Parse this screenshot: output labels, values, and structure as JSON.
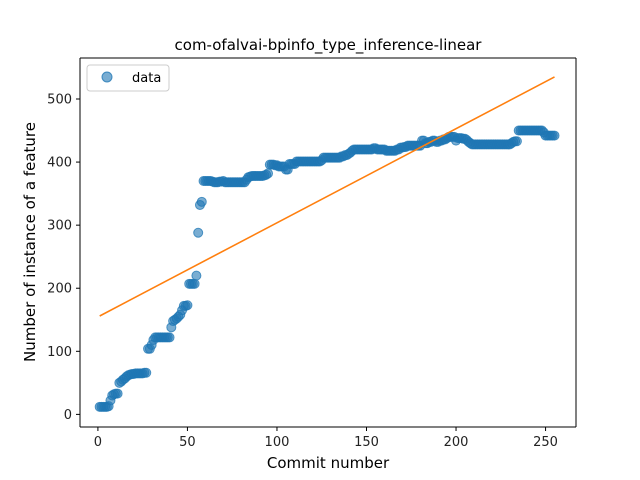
{
  "chart_data": {
    "type": "scatter",
    "title": "com-ofalvai-bpinfo_type_inference-linear",
    "xlabel": "Commit number",
    "ylabel": "Number of instance of a feature",
    "xlim": [
      -10,
      267
    ],
    "ylim": [
      -20,
      565
    ],
    "xticks": [
      0,
      50,
      100,
      150,
      200,
      250
    ],
    "yticks": [
      0,
      100,
      200,
      300,
      400,
      500
    ],
    "legend": {
      "position": "top-left",
      "entries": [
        "data"
      ]
    },
    "grid": false,
    "colors": {
      "data": "#1f77b4",
      "fit": "#ff7f0e"
    },
    "series": [
      {
        "name": "data",
        "kind": "scatter",
        "points": [
          [
            1,
            12
          ],
          [
            2,
            12
          ],
          [
            3,
            12
          ],
          [
            4,
            12
          ],
          [
            5,
            12
          ],
          [
            6,
            13
          ],
          [
            7,
            22
          ],
          [
            8,
            30
          ],
          [
            9,
            32
          ],
          [
            10,
            33
          ],
          [
            11,
            33
          ],
          [
            12,
            50
          ],
          [
            13,
            52
          ],
          [
            14,
            55
          ],
          [
            15,
            57
          ],
          [
            16,
            60
          ],
          [
            17,
            62
          ],
          [
            18,
            63
          ],
          [
            19,
            64
          ],
          [
            20,
            64
          ],
          [
            21,
            65
          ],
          [
            22,
            65
          ],
          [
            23,
            65
          ],
          [
            24,
            65
          ],
          [
            25,
            65
          ],
          [
            26,
            66
          ],
          [
            27,
            66
          ],
          [
            28,
            104
          ],
          [
            29,
            104
          ],
          [
            30,
            110
          ],
          [
            31,
            118
          ],
          [
            32,
            122
          ],
          [
            33,
            122
          ],
          [
            34,
            122
          ],
          [
            35,
            122
          ],
          [
            36,
            122
          ],
          [
            37,
            122
          ],
          [
            38,
            122
          ],
          [
            39,
            122
          ],
          [
            40,
            122
          ],
          [
            41,
            138
          ],
          [
            42,
            148
          ],
          [
            43,
            150
          ],
          [
            44,
            152
          ],
          [
            45,
            155
          ],
          [
            46,
            158
          ],
          [
            47,
            165
          ],
          [
            48,
            172
          ],
          [
            49,
            172
          ],
          [
            50,
            173
          ],
          [
            51,
            207
          ],
          [
            52,
            207
          ],
          [
            53,
            207
          ],
          [
            54,
            207
          ],
          [
            55,
            220
          ],
          [
            56,
            288
          ],
          [
            57,
            332
          ],
          [
            58,
            337
          ],
          [
            59,
            370
          ],
          [
            60,
            370
          ],
          [
            61,
            370
          ],
          [
            62,
            370
          ],
          [
            63,
            370
          ],
          [
            64,
            369
          ],
          [
            65,
            368
          ],
          [
            66,
            368
          ],
          [
            67,
            368
          ],
          [
            68,
            369
          ],
          [
            69,
            369
          ],
          [
            70,
            370
          ],
          [
            71,
            368
          ],
          [
            72,
            368
          ],
          [
            73,
            368
          ],
          [
            74,
            368
          ],
          [
            75,
            368
          ],
          [
            76,
            368
          ],
          [
            77,
            368
          ],
          [
            78,
            368
          ],
          [
            79,
            368
          ],
          [
            80,
            368
          ],
          [
            81,
            368
          ],
          [
            82,
            368
          ],
          [
            83,
            372
          ],
          [
            84,
            376
          ],
          [
            85,
            377
          ],
          [
            86,
            378
          ],
          [
            87,
            378
          ],
          [
            88,
            378
          ],
          [
            89,
            378
          ],
          [
            90,
            378
          ],
          [
            91,
            378
          ],
          [
            92,
            378
          ],
          [
            93,
            379
          ],
          [
            94,
            380
          ],
          [
            95,
            382
          ],
          [
            96,
            396
          ],
          [
            97,
            396
          ],
          [
            98,
            396
          ],
          [
            99,
            395
          ],
          [
            100,
            395
          ],
          [
            101,
            393
          ],
          [
            102,
            393
          ],
          [
            103,
            393
          ],
          [
            104,
            393
          ],
          [
            105,
            388
          ],
          [
            106,
            388
          ],
          [
            107,
            397
          ],
          [
            108,
            397
          ],
          [
            109,
            397
          ],
          [
            110,
            397
          ],
          [
            111,
            401
          ],
          [
            112,
            401
          ],
          [
            113,
            401
          ],
          [
            114,
            401
          ],
          [
            115,
            401
          ],
          [
            116,
            401
          ],
          [
            117,
            401
          ],
          [
            118,
            401
          ],
          [
            119,
            401
          ],
          [
            120,
            401
          ],
          [
            121,
            401
          ],
          [
            122,
            401
          ],
          [
            123,
            401
          ],
          [
            124,
            401
          ],
          [
            125,
            403
          ],
          [
            126,
            407
          ],
          [
            127,
            407
          ],
          [
            128,
            407
          ],
          [
            129,
            407
          ],
          [
            130,
            407
          ],
          [
            131,
            407
          ],
          [
            132,
            407
          ],
          [
            133,
            407
          ],
          [
            134,
            407
          ],
          [
            135,
            407
          ],
          [
            136,
            409
          ],
          [
            137,
            409
          ],
          [
            138,
            411
          ],
          [
            139,
            411
          ],
          [
            140,
            413
          ],
          [
            141,
            415
          ],
          [
            142,
            418
          ],
          [
            143,
            420
          ],
          [
            144,
            420
          ],
          [
            145,
            420
          ],
          [
            146,
            420
          ],
          [
            147,
            420
          ],
          [
            148,
            420
          ],
          [
            149,
            420
          ],
          [
            150,
            420
          ],
          [
            151,
            420
          ],
          [
            152,
            420
          ],
          [
            153,
            420
          ],
          [
            154,
            422
          ],
          [
            155,
            422
          ],
          [
            156,
            420
          ],
          [
            157,
            420
          ],
          [
            158,
            420
          ],
          [
            159,
            420
          ],
          [
            160,
            420
          ],
          [
            161,
            418
          ],
          [
            162,
            418
          ],
          [
            163,
            418
          ],
          [
            164,
            418
          ],
          [
            165,
            418
          ],
          [
            166,
            418
          ],
          [
            167,
            420
          ],
          [
            168,
            420
          ],
          [
            169,
            423
          ],
          [
            170,
            423
          ],
          [
            171,
            424
          ],
          [
            172,
            424
          ],
          [
            173,
            426
          ],
          [
            174,
            426
          ],
          [
            175,
            426
          ],
          [
            176,
            426
          ],
          [
            177,
            426
          ],
          [
            178,
            426
          ],
          [
            179,
            426
          ],
          [
            180,
            426
          ],
          [
            181,
            434
          ],
          [
            182,
            434
          ],
          [
            183,
            430
          ],
          [
            184,
            430
          ],
          [
            185,
            432
          ],
          [
            186,
            432
          ],
          [
            187,
            434
          ],
          [
            188,
            434
          ],
          [
            189,
            432
          ],
          [
            190,
            432
          ],
          [
            191,
            434
          ],
          [
            192,
            434
          ],
          [
            193,
            436
          ],
          [
            194,
            436
          ],
          [
            195,
            438
          ],
          [
            196,
            440
          ],
          [
            197,
            440
          ],
          [
            198,
            440
          ],
          [
            199,
            440
          ],
          [
            200,
            434
          ],
          [
            201,
            438
          ],
          [
            202,
            438
          ],
          [
            203,
            438
          ],
          [
            204,
            437
          ],
          [
            205,
            437
          ],
          [
            206,
            435
          ],
          [
            207,
            432
          ],
          [
            208,
            430
          ],
          [
            209,
            428
          ],
          [
            210,
            428
          ],
          [
            211,
            428
          ],
          [
            212,
            428
          ],
          [
            213,
            428
          ],
          [
            214,
            428
          ],
          [
            215,
            428
          ],
          [
            216,
            428
          ],
          [
            217,
            428
          ],
          [
            218,
            428
          ],
          [
            219,
            428
          ],
          [
            220,
            428
          ],
          [
            221,
            428
          ],
          [
            222,
            428
          ],
          [
            223,
            428
          ],
          [
            224,
            428
          ],
          [
            225,
            428
          ],
          [
            226,
            428
          ],
          [
            227,
            428
          ],
          [
            228,
            428
          ],
          [
            229,
            428
          ],
          [
            230,
            428
          ],
          [
            231,
            430
          ],
          [
            232,
            432
          ],
          [
            233,
            433
          ],
          [
            234,
            433
          ],
          [
            235,
            450
          ],
          [
            236,
            450
          ],
          [
            237,
            450
          ],
          [
            238,
            450
          ],
          [
            239,
            450
          ],
          [
            240,
            450
          ],
          [
            241,
            450
          ],
          [
            242,
            450
          ],
          [
            243,
            450
          ],
          [
            244,
            450
          ],
          [
            245,
            450
          ],
          [
            246,
            450
          ],
          [
            247,
            450
          ],
          [
            248,
            450
          ],
          [
            249,
            447
          ],
          [
            250,
            442
          ],
          [
            251,
            442
          ],
          [
            252,
            442
          ],
          [
            253,
            442
          ],
          [
            254,
            442
          ],
          [
            255,
            442
          ]
        ]
      },
      {
        "kind": "line",
        "points": [
          [
            1,
            156
          ],
          [
            255,
            535
          ]
        ]
      }
    ]
  }
}
